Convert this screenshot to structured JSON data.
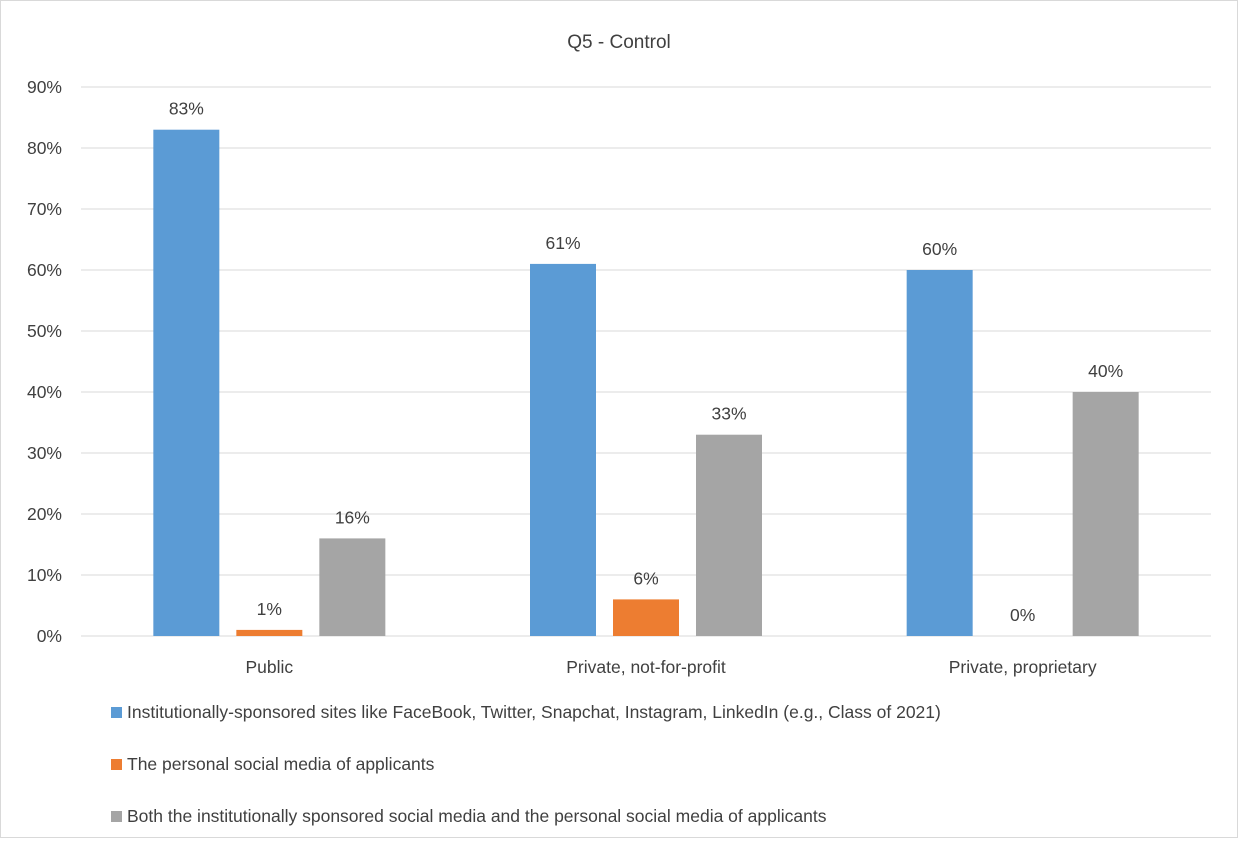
{
  "chart_data": {
    "type": "bar",
    "title": "Q5 - Control",
    "categories": [
      "Public",
      "Private, not-for-profit",
      "Private, proprietary"
    ],
    "series": [
      {
        "name": "Institutionally-sponsored sites like FaceBook, Twitter,  Snapchat, Instagram, LinkedIn (e.g., Class of 2021)",
        "values": [
          83,
          61,
          60
        ],
        "labels": [
          "83%",
          "61%",
          "60%"
        ],
        "color": "#5b9bd5"
      },
      {
        "name": "The personal social media of applicants",
        "values": [
          1,
          6,
          0
        ],
        "labels": [
          "1%",
          "6%",
          "0%"
        ],
        "color": "#ed7d31"
      },
      {
        "name": "Both the institutionally sponsored social media and the personal social media of applicants",
        "values": [
          16,
          33,
          40
        ],
        "labels": [
          "16%",
          "33%",
          "40%"
        ],
        "color": "#a5a5a5"
      }
    ],
    "ylim": [
      0,
      90
    ],
    "yticks": [
      0,
      10,
      20,
      30,
      40,
      50,
      60,
      70,
      80,
      90
    ],
    "ytick_labels": [
      "0%",
      "10%",
      "20%",
      "30%",
      "40%",
      "50%",
      "60%",
      "70%",
      "80%",
      "90%"
    ],
    "grid": true,
    "legend_position": "bottom",
    "gridline_color": "#d9d9d9"
  }
}
